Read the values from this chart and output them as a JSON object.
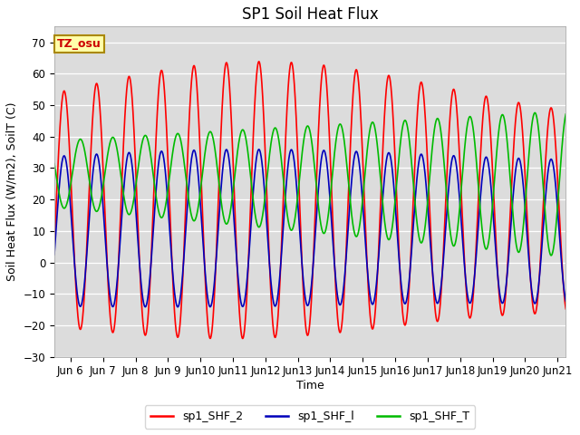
{
  "title": "SP1 Soil Heat Flux",
  "ylabel": "Soil Heat Flux (W/m2), SoilT (C)",
  "xlabel": "Time",
  "xlim_start_day": 5.5,
  "xlim_end_day": 21.25,
  "ylim": [
    -30,
    75
  ],
  "yticks": [
    -30,
    -20,
    -10,
    0,
    10,
    20,
    30,
    40,
    50,
    60,
    70
  ],
  "xtick_positions": [
    6,
    7,
    8,
    9,
    10,
    11,
    12,
    13,
    14,
    15,
    16,
    17,
    18,
    19,
    20,
    21
  ],
  "xtick_labels": [
    "Jun 6",
    "Jun 7",
    "Jun 8",
    "Jun 9",
    "Jun 10",
    "Jun 11",
    "Jun 12",
    "Jun 13",
    "Jun 14",
    "Jun 15",
    "Jun 16",
    "Jun 17",
    "Jun 18",
    "Jun 19",
    "Jun 20",
    "Jun 21"
  ],
  "color_red": "#ff0000",
  "color_blue": "#0000bb",
  "color_green": "#00bb00",
  "bg_color": "#dcdcdc",
  "annotation_text": "TZ_osu",
  "annotation_bg": "#ffffaa",
  "annotation_border": "#aa8800",
  "legend_labels": [
    "sp1_SHF_2",
    "sp1_SHF_l",
    "sp1_SHF_T"
  ],
  "title_fontsize": 12,
  "label_fontsize": 9,
  "tick_fontsize": 8.5
}
